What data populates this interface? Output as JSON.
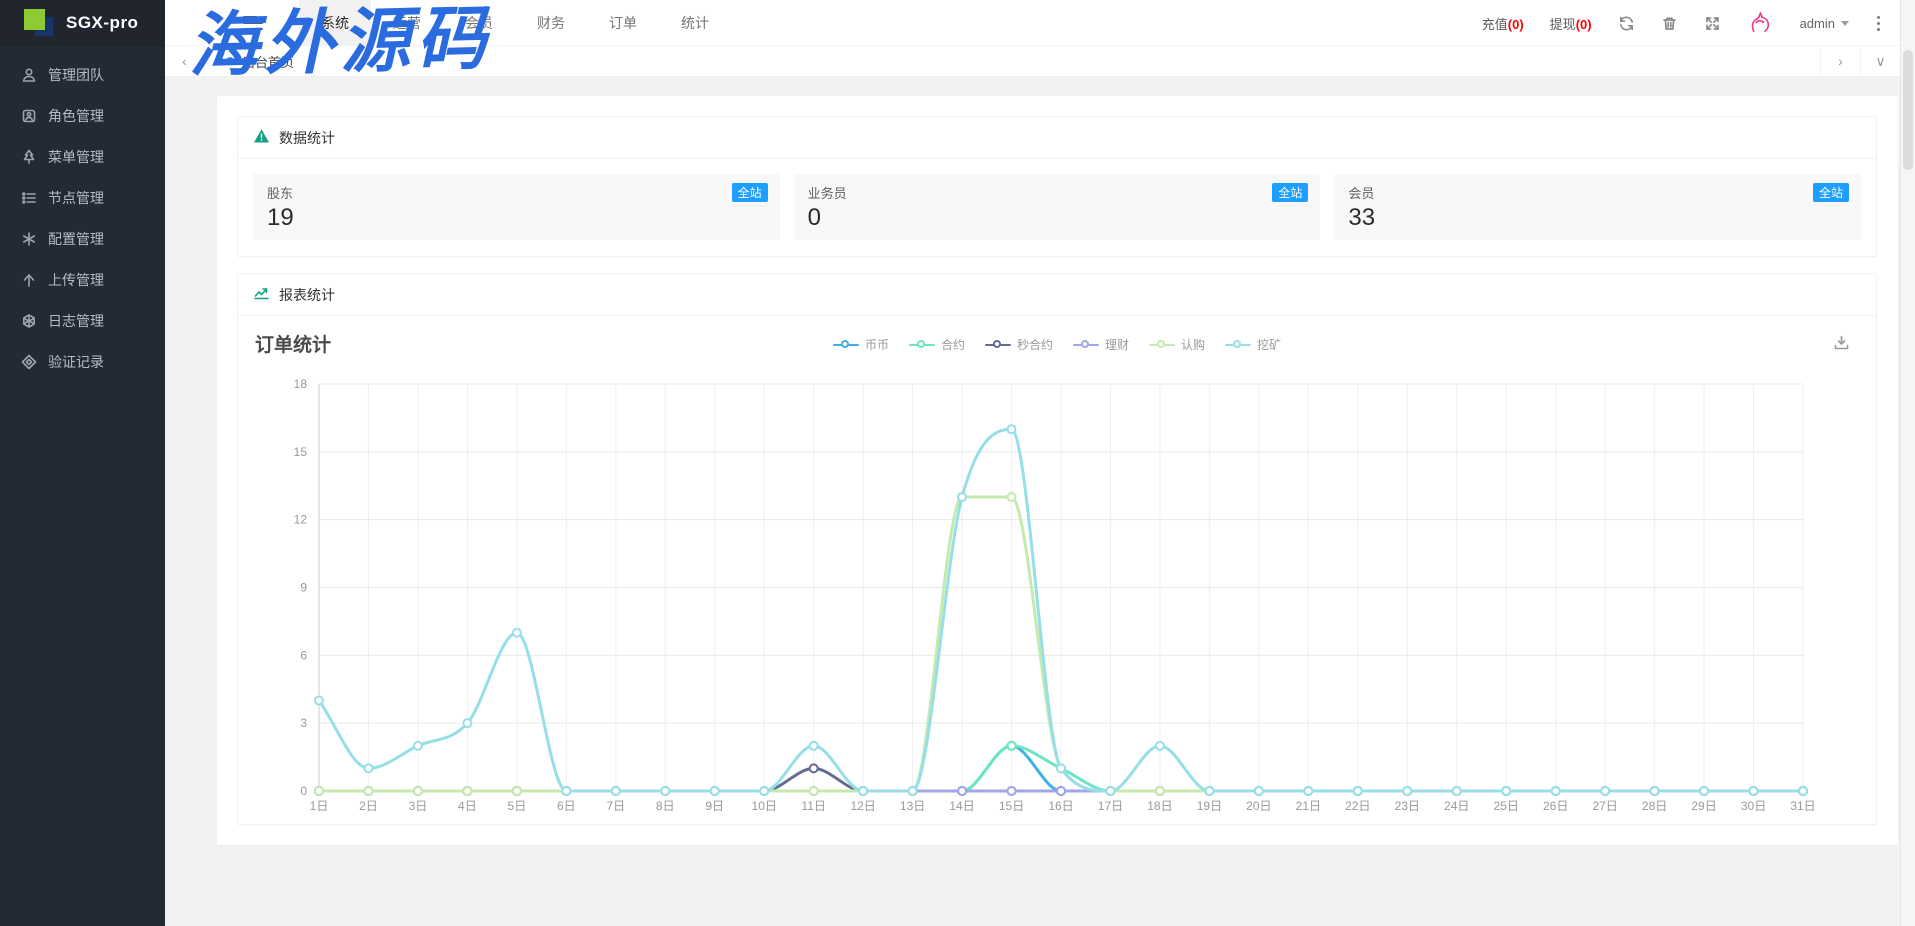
{
  "app": {
    "logo_text": "SGX-pro",
    "watermark": "海外源码"
  },
  "header": {
    "tabs": [
      {
        "label": "系统",
        "active": true
      },
      {
        "label": "运营",
        "active": false
      },
      {
        "label": "会员",
        "active": false
      },
      {
        "label": "财务",
        "active": false
      },
      {
        "label": "订单",
        "active": false
      },
      {
        "label": "统计",
        "active": false
      }
    ],
    "recharge_label": "充值",
    "recharge_count": "(0)",
    "withdraw_label": "提现",
    "withdraw_count": "(0)",
    "username": "admin"
  },
  "breadcrumb": {
    "home_tab": "后台首页",
    "left_arrow": "‹",
    "right_arrow": "›",
    "down_arrow": "∨"
  },
  "sidebar": {
    "items": [
      {
        "label": "管理团队",
        "icon": "user-icon"
      },
      {
        "label": "角色管理",
        "icon": "role-badge-icon"
      },
      {
        "label": "菜单管理",
        "icon": "tree-icon"
      },
      {
        "label": "节点管理",
        "icon": "list-icon"
      },
      {
        "label": "配置管理",
        "icon": "asterisk-icon"
      },
      {
        "label": "上传管理",
        "icon": "upload-arrow-icon"
      },
      {
        "label": "日志管理",
        "icon": "log-sphere-icon"
      },
      {
        "label": "验证记录",
        "icon": "verify-compass-icon"
      }
    ]
  },
  "stats": {
    "section_title": "数据统计",
    "badge": "全站",
    "badge_color": "#1e9fff",
    "items": [
      {
        "label": "股东",
        "value": "19"
      },
      {
        "label": "业务员",
        "value": "0"
      },
      {
        "label": "会员",
        "value": "33"
      }
    ]
  },
  "report": {
    "section_title": "报表统计",
    "chart_title": "订单统计"
  },
  "chart_data": {
    "type": "line",
    "title": "订单统计",
    "legend_position": "top-center",
    "grid": true,
    "smooth": true,
    "ylim": [
      0,
      18
    ],
    "yticks": [
      0,
      3,
      6,
      9,
      12,
      15,
      18
    ],
    "categories": [
      "1日",
      "2日",
      "3日",
      "4日",
      "5日",
      "6日",
      "7日",
      "8日",
      "9日",
      "10日",
      "11日",
      "12日",
      "13日",
      "14日",
      "15日",
      "16日",
      "17日",
      "18日",
      "19日",
      "20日",
      "21日",
      "22日",
      "23日",
      "24日",
      "25日",
      "26日",
      "27日",
      "28日",
      "29日",
      "30日",
      "31日"
    ],
    "series": [
      {
        "name": "币币",
        "color": "#3fb1e3",
        "values": [
          0,
          0,
          0,
          0,
          0,
          0,
          0,
          0,
          0,
          0,
          0,
          0,
          0,
          0,
          2,
          0,
          0,
          0,
          0,
          0,
          0,
          0,
          0,
          0,
          0,
          0,
          0,
          0,
          0,
          0,
          0
        ]
      },
      {
        "name": "合约",
        "color": "#6be6c1",
        "values": [
          0,
          0,
          0,
          0,
          0,
          0,
          0,
          0,
          0,
          0,
          0,
          0,
          0,
          0,
          2,
          1,
          0,
          0,
          0,
          0,
          0,
          0,
          0,
          0,
          0,
          0,
          0,
          0,
          0,
          0,
          0
        ]
      },
      {
        "name": "秒合约",
        "color": "#626c91",
        "values": [
          0,
          0,
          0,
          0,
          0,
          0,
          0,
          0,
          0,
          0,
          1,
          0,
          0,
          0,
          0,
          0,
          0,
          0,
          0,
          0,
          0,
          0,
          0,
          0,
          0,
          0,
          0,
          0,
          0,
          0,
          0
        ]
      },
      {
        "name": "理财",
        "color": "#a0a7e6",
        "values": [
          0,
          0,
          0,
          0,
          0,
          0,
          0,
          0,
          0,
          0,
          0,
          0,
          0,
          0,
          0,
          0,
          0,
          0,
          0,
          0,
          0,
          0,
          0,
          0,
          0,
          0,
          0,
          0,
          0,
          0,
          0
        ]
      },
      {
        "name": "认购",
        "color": "#c4ebad",
        "values": [
          0,
          0,
          0,
          0,
          0,
          0,
          0,
          0,
          0,
          0,
          0,
          0,
          0,
          13,
          13,
          1,
          0,
          0,
          0,
          0,
          0,
          0,
          0,
          0,
          0,
          0,
          0,
          0,
          0,
          0,
          0
        ]
      },
      {
        "name": "挖矿",
        "color": "#96dee8",
        "values": [
          4,
          1,
          2,
          3,
          7,
          0,
          0,
          0,
          0,
          0,
          2,
          0,
          0,
          13,
          16,
          1,
          0,
          2,
          0,
          0,
          0,
          0,
          0,
          0,
          0,
          0,
          0,
          0,
          0,
          0,
          0
        ]
      }
    ]
  }
}
